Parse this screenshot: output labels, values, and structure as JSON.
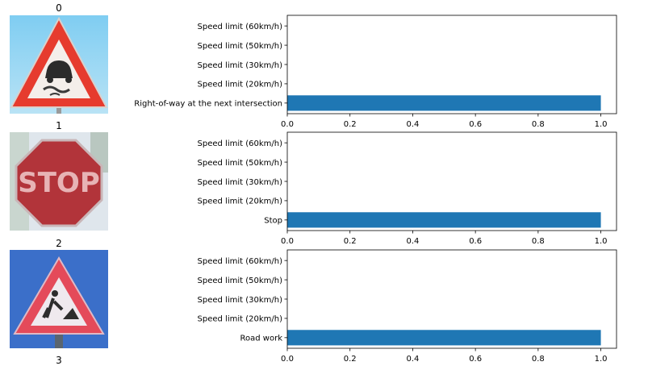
{
  "figure": {
    "panel_titles": [
      "0",
      "1",
      "2",
      "3"
    ]
  },
  "colors": {
    "bar": "#1f77b4",
    "axis": "#000000"
  },
  "images": [
    {
      "icon": "slippery-road-warning-sign-icon"
    },
    {
      "icon": "stop-sign-icon"
    },
    {
      "icon": "road-work-warning-sign-icon"
    }
  ],
  "chart_data": [
    {
      "type": "bar",
      "orientation": "horizontal",
      "categories": [
        "Right-of-way at the next intersection",
        "Speed limit (20km/h)",
        "Speed limit (30km/h)",
        "Speed limit (50km/h)",
        "Speed limit (60km/h)"
      ],
      "values": [
        1.0,
        0.0,
        0.0,
        0.0,
        0.0
      ],
      "xlim": [
        0,
        1.05
      ],
      "xticks": [
        0.0,
        0.2,
        0.4,
        0.6,
        0.8,
        1.0
      ],
      "xtick_labels": [
        "0.0",
        "0.2",
        "0.4",
        "0.6",
        "0.8",
        "1.0"
      ]
    },
    {
      "type": "bar",
      "orientation": "horizontal",
      "categories": [
        "Stop",
        "Speed limit (20km/h)",
        "Speed limit (30km/h)",
        "Speed limit (50km/h)",
        "Speed limit (60km/h)"
      ],
      "values": [
        1.0,
        0.0,
        0.0,
        0.0,
        0.0
      ],
      "xlim": [
        0,
        1.05
      ],
      "xticks": [
        0.0,
        0.2,
        0.4,
        0.6,
        0.8,
        1.0
      ],
      "xtick_labels": [
        "0.0",
        "0.2",
        "0.4",
        "0.6",
        "0.8",
        "1.0"
      ]
    },
    {
      "type": "bar",
      "orientation": "horizontal",
      "categories": [
        "Road work",
        "Speed limit (20km/h)",
        "Speed limit (30km/h)",
        "Speed limit (50km/h)",
        "Speed limit (60km/h)"
      ],
      "values": [
        1.0,
        0.0,
        0.0,
        0.0,
        0.0
      ],
      "xlim": [
        0,
        1.05
      ],
      "xticks": [
        0.0,
        0.2,
        0.4,
        0.6,
        0.8,
        1.0
      ],
      "xtick_labels": [
        "0.0",
        "0.2",
        "0.4",
        "0.6",
        "0.8",
        "1.0"
      ]
    }
  ]
}
